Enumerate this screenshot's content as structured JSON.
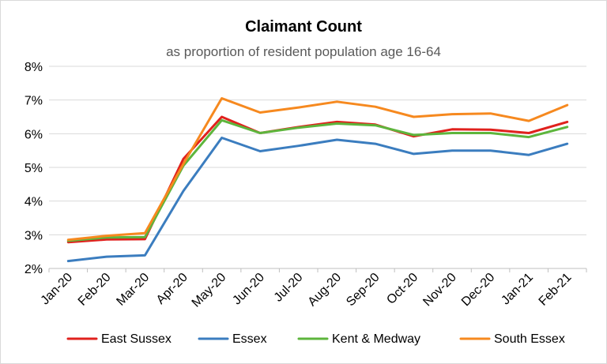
{
  "chart_data": {
    "type": "line",
    "title": "Claimant Count",
    "subtitle": "as proportion of resident population age 16-64",
    "categories": [
      "Jan-20",
      "Feb-20",
      "Mar-20",
      "Apr-20",
      "May-20",
      "Jun-20",
      "Jul-20",
      "Aug-20",
      "Sep-20",
      "Oct-20",
      "Nov-20",
      "Dec-20",
      "Jan-21",
      "Feb-21"
    ],
    "ylim": [
      2,
      8
    ],
    "yticks": [
      2,
      3,
      4,
      5,
      6,
      7,
      8
    ],
    "ytick_labels": [
      "2%",
      "3%",
      "4%",
      "5%",
      "6%",
      "7%",
      "8%"
    ],
    "grid": true,
    "legend_position": "bottom",
    "series": [
      {
        "name": "East Sussex",
        "color": "#e0211d",
        "values": [
          2.78,
          2.86,
          2.87,
          5.25,
          6.5,
          6.02,
          6.2,
          6.35,
          6.27,
          5.92,
          6.13,
          6.12,
          6.02,
          6.35
        ]
      },
      {
        "name": "Essex",
        "color": "#3b7dbf",
        "values": [
          2.22,
          2.35,
          2.39,
          4.3,
          5.88,
          5.48,
          5.64,
          5.82,
          5.7,
          5.4,
          5.5,
          5.5,
          5.37,
          5.7
        ]
      },
      {
        "name": "Kent & Medway",
        "color": "#5db53c",
        "values": [
          2.82,
          2.92,
          2.93,
          5.05,
          6.4,
          6.02,
          6.18,
          6.3,
          6.25,
          5.96,
          6.02,
          6.02,
          5.9,
          6.2
        ]
      },
      {
        "name": "South Essex",
        "color": "#f6891f",
        "values": [
          2.85,
          2.97,
          3.05,
          5.1,
          7.05,
          6.63,
          6.78,
          6.95,
          6.8,
          6.5,
          6.58,
          6.6,
          6.38,
          6.85
        ]
      }
    ]
  }
}
